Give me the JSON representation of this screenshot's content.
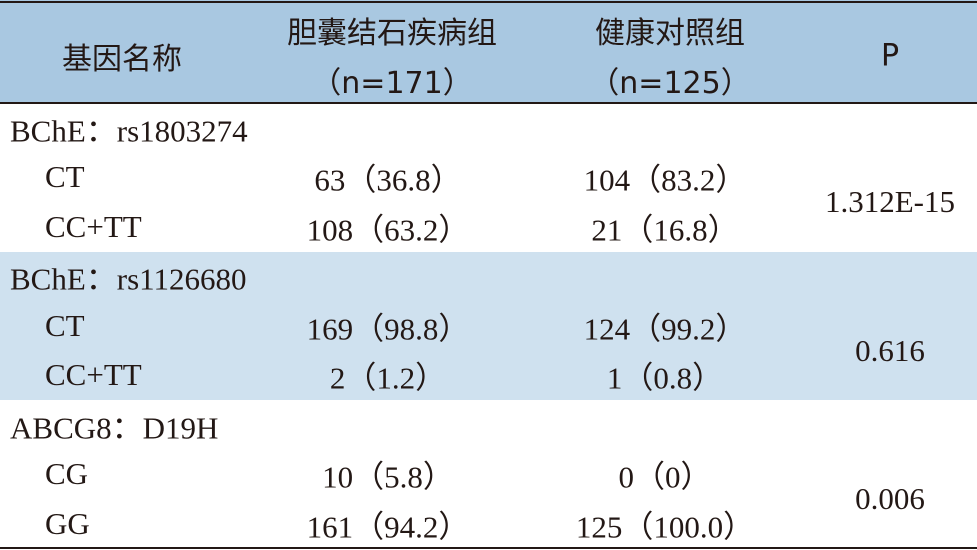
{
  "header": {
    "gene": "基因名称",
    "group1": {
      "name": "胆囊结石疾病组",
      "n": "（n=171）"
    },
    "group2": {
      "name": "健康对照组",
      "n": "（n=125）"
    },
    "p": "P"
  },
  "groups": [
    {
      "title": "BChE：rs1803274",
      "rows": [
        [
          "CT",
          "63（36.8）",
          "104（83.2）"
        ],
        [
          "CC+TT",
          "108（63.2）",
          "21（16.8）"
        ]
      ],
      "p": "1.312E-15"
    },
    {
      "title": "BChE：rs1126680",
      "rows": [
        [
          "CT",
          "169（98.8）",
          "124（99.2）"
        ],
        [
          "CC+TT",
          "2（1.2）",
          "1（0.8）"
        ]
      ],
      "p": "0.616"
    },
    {
      "title": "ABCG8：D19H",
      "rows": [
        [
          "CG",
          "10（5.8）",
          "0（0）"
        ],
        [
          "GG",
          "161（94.2）",
          "125（100.0）"
        ]
      ],
      "p": "0.006"
    }
  ]
}
